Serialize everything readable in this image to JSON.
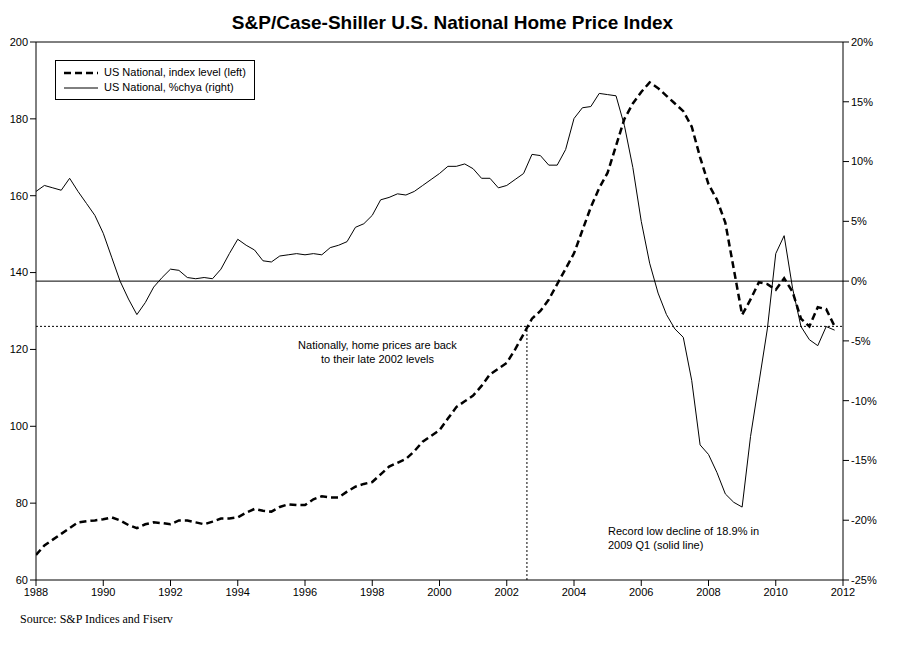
{
  "chart_data": {
    "type": "line",
    "title": "S&P/Case-Shiller U.S. National Home Price Index",
    "source": "Source: S&P Indices and Fiserv",
    "annotations": [
      "Nationally, home prices are back\nto their late 2002 levels",
      "Record low decline of 18.9% in\n2009 Q1 (solid line)"
    ],
    "legend": "upper left",
    "grid": false,
    "x": [
      1988,
      1988.25,
      1988.5,
      1988.75,
      1989,
      1989.25,
      1989.5,
      1989.75,
      1990,
      1990.25,
      1990.5,
      1990.75,
      1991,
      1991.25,
      1991.5,
      1991.75,
      1992,
      1992.25,
      1992.5,
      1992.75,
      1993,
      1993.25,
      1993.5,
      1993.75,
      1994,
      1994.25,
      1994.5,
      1994.75,
      1995,
      1995.25,
      1995.5,
      1995.75,
      1996,
      1996.25,
      1996.5,
      1996.75,
      1997,
      1997.25,
      1997.5,
      1997.75,
      1998,
      1998.25,
      1998.5,
      1998.75,
      1999,
      1999.25,
      1999.5,
      1999.75,
      2000,
      2000.25,
      2000.5,
      2000.75,
      2001,
      2001.25,
      2001.5,
      2001.75,
      2002,
      2002.25,
      2002.5,
      2002.75,
      2003,
      2003.25,
      2003.5,
      2003.75,
      2004,
      2004.25,
      2004.5,
      2004.75,
      2005,
      2005.25,
      2005.5,
      2005.75,
      2006,
      2006.25,
      2006.5,
      2006.75,
      2007,
      2007.25,
      2007.5,
      2007.75,
      2008,
      2008.25,
      2008.5,
      2008.75,
      2009,
      2009.25,
      2009.5,
      2009.75,
      2010,
      2010.25,
      2010.5,
      2010.75,
      2011,
      2011.25,
      2011.5,
      2011.75
    ],
    "series": [
      {
        "name": "US National, index level (left)",
        "color": "#000000",
        "line_style": "dashed",
        "axis": "y",
        "values": [
          66.5,
          69,
          70.5,
          72,
          73.5,
          75,
          75.3,
          75.5,
          75.8,
          76.3,
          75.5,
          74.3,
          73.5,
          74.5,
          75,
          74.8,
          74.5,
          75.5,
          75.5,
          75,
          74.5,
          75.2,
          76,
          76,
          76.3,
          77.5,
          78.5,
          78,
          77.8,
          79,
          79.7,
          79.5,
          79.5,
          81,
          81.8,
          81.5,
          81.5,
          83,
          84.3,
          85,
          85.5,
          87.5,
          89.5,
          90.5,
          91.5,
          93.5,
          96,
          97.5,
          99,
          102,
          105,
          106.5,
          108,
          110.5,
          113.5,
          115,
          116.5,
          120,
          124,
          128,
          130,
          133,
          137,
          141,
          145,
          151,
          157,
          162,
          166,
          173,
          180,
          184,
          187,
          189.5,
          188,
          186,
          184,
          182,
          178,
          170,
          163,
          159,
          153,
          141,
          129,
          133,
          137.5,
          137,
          135.5,
          138.5,
          135,
          128,
          126,
          131,
          130.5,
          126
        ]
      },
      {
        "name": "US National, %chya (right)",
        "color": "#000000",
        "line_style": "solid",
        "axis": "y2",
        "values": [
          7.5,
          8.0,
          7.8,
          7.6,
          8.6,
          7.5,
          6.5,
          5.5,
          4.0,
          2.0,
          0.0,
          -1.5,
          -2.8,
          -1.8,
          -0.5,
          0.3,
          1.0,
          0.9,
          0.3,
          0.2,
          0.3,
          0.2,
          1.0,
          2.3,
          3.5,
          3.0,
          2.6,
          1.7,
          1.6,
          2.1,
          2.2,
          2.3,
          2.2,
          2.3,
          2.2,
          2.8,
          3.0,
          3.3,
          4.5,
          4.8,
          5.5,
          6.8,
          7.0,
          7.3,
          7.2,
          7.5,
          8.0,
          8.5,
          9.0,
          9.6,
          9.6,
          9.8,
          9.4,
          8.6,
          8.6,
          7.8,
          8.0,
          8.5,
          9.0,
          10.6,
          10.5,
          9.7,
          9.7,
          11.0,
          13.6,
          14.5,
          14.6,
          15.7,
          15.6,
          15.5,
          13.0,
          9.5,
          5.0,
          1.5,
          -1.0,
          -2.8,
          -4.0,
          -4.7,
          -8.3,
          -13.7,
          -14.5,
          -16.0,
          -17.8,
          -18.5,
          -18.9,
          -13.0,
          -8.5,
          -4.0,
          2.3,
          3.8,
          -0.6,
          -3.8,
          -4.9,
          -5.4,
          -3.8,
          -4.1
        ]
      }
    ],
    "xlim": [
      1988,
      2012
    ],
    "xticks": [
      1988,
      1990,
      1992,
      1994,
      1996,
      1998,
      2000,
      2002,
      2004,
      2006,
      2008,
      2010,
      2012
    ],
    "ylim": [
      60,
      200
    ],
    "yticks": [
      60,
      80,
      100,
      120,
      140,
      160,
      180,
      200
    ],
    "y2lim": [
      -25,
      20
    ],
    "y2ticks": [
      {
        "value": -25,
        "label": "-25%"
      },
      {
        "value": -20,
        "label": "-20%"
      },
      {
        "value": -15,
        "label": "-15%"
      },
      {
        "value": -10,
        "label": "-10%"
      },
      {
        "value": -5,
        "label": "-5%"
      },
      {
        "value": 0,
        "label": "0%"
      },
      {
        "value": 5,
        "label": "5%"
      },
      {
        "value": 10,
        "label": "10%"
      },
      {
        "value": 15,
        "label": "15%"
      },
      {
        "value": 20,
        "label": "20%"
      }
    ],
    "hlines": [
      {
        "value": 0,
        "axis": "y2",
        "line_style": "solid"
      },
      {
        "value": 126,
        "axis": "y",
        "line_style": "dotted"
      }
    ],
    "vlines": [
      {
        "value": 2002.6,
        "to": 126,
        "line_style": "dotted"
      }
    ]
  }
}
